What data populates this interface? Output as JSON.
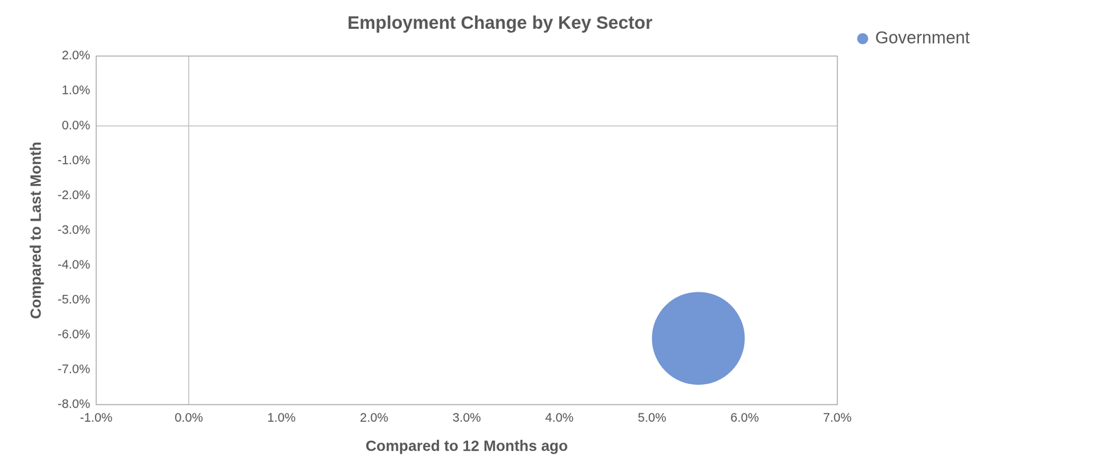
{
  "chart_data": {
    "type": "bubble",
    "title": "Employment Change by Key Sector",
    "x_label": "Compared to 12 Months ago",
    "y_label": "Compared to Last Month",
    "series": [
      {
        "name": "Government",
        "color": "#7396d4",
        "x": [
          5.5
        ],
        "values": [
          -6.1
        ],
        "sizes": [
          1
        ]
      }
    ],
    "xlim": [
      -1,
      7
    ],
    "xticks": [
      {
        "value": -1,
        "label": "-1.0%"
      },
      {
        "value": 0,
        "label": "0.0%"
      },
      {
        "value": 1,
        "label": "1.0%"
      },
      {
        "value": 2,
        "label": "2.0%"
      },
      {
        "value": 3,
        "label": "3.0%"
      },
      {
        "value": 4,
        "label": "4.0%"
      },
      {
        "value": 5,
        "label": "5.0%"
      },
      {
        "value": 6,
        "label": "6.0%"
      },
      {
        "value": 7,
        "label": "7.0%"
      }
    ],
    "ylim": [
      -8,
      2
    ],
    "yticks": [
      {
        "value": -8,
        "label": "-8.0%"
      },
      {
        "value": -7,
        "label": "-7.0%"
      },
      {
        "value": -6,
        "label": "-6.0%"
      },
      {
        "value": -5,
        "label": "-5.0%"
      },
      {
        "value": -4,
        "label": "-4.0%"
      },
      {
        "value": -3,
        "label": "-3.0%"
      },
      {
        "value": -2,
        "label": "-2.0%"
      },
      {
        "value": -1,
        "label": "-1.0%"
      },
      {
        "value": 0,
        "label": "0.0%"
      },
      {
        "value": 1,
        "label": "1.0%"
      },
      {
        "value": 2,
        "label": "2.0%"
      }
    ],
    "grid": false,
    "legend": "right"
  }
}
